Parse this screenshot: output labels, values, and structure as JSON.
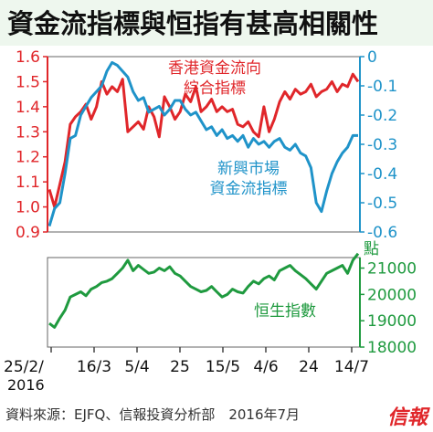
{
  "title": "資金流指標與恒指有甚高相關性",
  "source": "資料來源：EJFQ、信報投資分析部　2016年7月",
  "publisher_logo": "信報",
  "colors": {
    "red": "#e0262a",
    "blue": "#1f93c9",
    "green": "#1f9a3f",
    "title_bg": "#eef7ee",
    "gray": "#555555"
  },
  "chart_data": [
    {
      "type": "line",
      "x_tick_labels": [
        "25/2/",
        "16/3",
        "5/4",
        "25",
        "15/5",
        "4/6",
        "24",
        "14/7"
      ],
      "x_year_label": "2016",
      "y_left": {
        "ticks": [
          "1.6",
          "1.5",
          "1.4",
          "1.3",
          "1.2",
          "1.1",
          "1.0",
          "0.9"
        ],
        "range": [
          0.9,
          1.6
        ],
        "color": "#e0262a"
      },
      "y_right": {
        "ticks": [
          "0",
          "-0.1",
          "-0.2",
          "-0.3",
          "-0.4",
          "-0.5",
          "-0.6"
        ],
        "range": [
          -0.6,
          0
        ],
        "color": "#1f93c9"
      },
      "series": [
        {
          "name": "香港資金流向綜合指標",
          "axis": "left",
          "color": "#e0262a",
          "values": [
            1.07,
            1.0,
            1.09,
            1.18,
            1.33,
            1.36,
            1.38,
            1.41,
            1.35,
            1.4,
            1.5,
            1.45,
            1.48,
            1.46,
            1.51,
            1.3,
            1.32,
            1.34,
            1.31,
            1.4,
            1.36,
            1.28,
            1.44,
            1.4,
            1.35,
            1.38,
            1.45,
            1.42,
            1.48,
            1.38,
            1.4,
            1.43,
            1.38,
            1.4,
            1.38,
            1.39,
            1.33,
            1.32,
            1.34,
            1.3,
            1.28,
            1.4,
            1.3,
            1.35,
            1.42,
            1.46,
            1.43,
            1.47,
            1.45,
            1.46,
            1.49,
            1.44,
            1.46,
            1.47,
            1.5,
            1.46,
            1.49,
            1.48,
            1.53,
            1.5
          ]
        },
        {
          "name": "新興市場資金流指標",
          "axis": "right",
          "color": "#1f93c9",
          "values": [
            -0.58,
            -0.52,
            -0.5,
            -0.4,
            -0.28,
            -0.27,
            -0.2,
            -0.17,
            -0.14,
            -0.12,
            -0.1,
            -0.05,
            -0.02,
            -0.03,
            -0.05,
            -0.07,
            -0.12,
            -0.15,
            -0.14,
            -0.19,
            -0.18,
            -0.17,
            -0.2,
            -0.18,
            -0.15,
            -0.15,
            -0.18,
            -0.2,
            -0.19,
            -0.22,
            -0.25,
            -0.24,
            -0.27,
            -0.25,
            -0.28,
            -0.27,
            -0.29,
            -0.27,
            -0.31,
            -0.28,
            -0.3,
            -0.29,
            -0.31,
            -0.29,
            -0.28,
            -0.31,
            -0.32,
            -0.3,
            -0.33,
            -0.34,
            -0.38,
            -0.5,
            -0.53,
            -0.46,
            -0.4,
            -0.36,
            -0.33,
            -0.31,
            -0.27,
            -0.27
          ]
        }
      ],
      "annotations": {
        "red_label": [
          "香港資金流向",
          "綜合指標"
        ],
        "blue_label": [
          "新興市場",
          "資金流指標"
        ]
      }
    },
    {
      "type": "line",
      "y_unit_label": "點",
      "y_right": {
        "ticks": [
          "21000",
          "20000",
          "19000",
          "18000"
        ],
        "range": [
          18000,
          21400
        ],
        "color": "#1f9a3f"
      },
      "series": [
        {
          "name": "恒生指數",
          "axis": "right",
          "color": "#1f9a3f",
          "values": [
            18900,
            18750,
            19100,
            19400,
            19900,
            20000,
            20100,
            19950,
            20200,
            20300,
            20450,
            20500,
            20600,
            20800,
            21000,
            21300,
            20900,
            21100,
            20950,
            20800,
            20850,
            21000,
            20900,
            21050,
            20800,
            20700,
            20500,
            20300,
            20200,
            20100,
            20150,
            20300,
            20100,
            19900,
            20000,
            20200,
            20100,
            20050,
            20300,
            20500,
            20400,
            20600,
            20700,
            20550,
            20900,
            21000,
            21100,
            20900,
            20750,
            20600,
            20400,
            20200,
            20500,
            20800,
            20900,
            21000,
            21100,
            20800,
            21300,
            21550
          ]
        }
      ],
      "annotations": {
        "green_label": "恒生指數"
      }
    }
  ]
}
